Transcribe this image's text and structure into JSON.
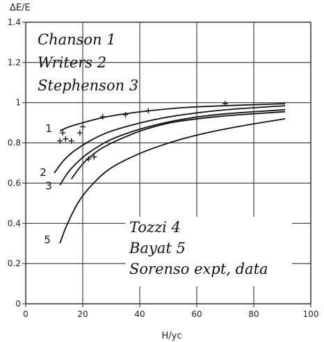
{
  "chart_data": {
    "type": "line",
    "title": "",
    "xlabel": "H/yc",
    "ylabel": "ΔE/E",
    "xlim": [
      0,
      100
    ],
    "ylim": [
      0,
      1.4
    ],
    "xticks": [
      "0",
      "20",
      "40",
      "60",
      "80",
      "100"
    ],
    "yticks": [
      "0",
      "0.2",
      "0.4",
      "0.6",
      "0.8",
      "1",
      "1.2",
      "1.4"
    ],
    "grid": true,
    "series": [
      {
        "name": "Chanson",
        "label": "1",
        "x": [
          12,
          15,
          20,
          25,
          30,
          40,
          50,
          60,
          70,
          80,
          91
        ],
        "y": [
          0.86,
          0.88,
          0.9,
          0.92,
          0.935,
          0.955,
          0.97,
          0.98,
          0.985,
          0.99,
          0.995
        ]
      },
      {
        "name": "Writers",
        "label": "2",
        "x": [
          10,
          13,
          16,
          20,
          25,
          30,
          40,
          50,
          60,
          70,
          80,
          91
        ],
        "y": [
          0.65,
          0.71,
          0.75,
          0.79,
          0.83,
          0.86,
          0.9,
          0.93,
          0.95,
          0.965,
          0.975,
          0.985
        ]
      },
      {
        "name": "Stephenson",
        "label": "3",
        "x": [
          12,
          15,
          20,
          25,
          30,
          40,
          50,
          60,
          70,
          80,
          91
        ],
        "y": [
          0.59,
          0.66,
          0.73,
          0.78,
          0.82,
          0.87,
          0.905,
          0.93,
          0.945,
          0.955,
          0.965
        ]
      },
      {
        "name": "Tozzi",
        "label": "4",
        "x": [
          16,
          20,
          25,
          30,
          35,
          40,
          50,
          60,
          70,
          80,
          91
        ],
        "y": [
          0.62,
          0.7,
          0.76,
          0.8,
          0.83,
          0.86,
          0.9,
          0.92,
          0.935,
          0.945,
          0.955
        ]
      },
      {
        "name": "Bayat",
        "label": "5",
        "x": [
          12,
          14,
          17,
          20,
          25,
          30,
          40,
          50,
          60,
          70,
          80,
          91
        ],
        "y": [
          0.3,
          0.38,
          0.47,
          0.54,
          0.62,
          0.68,
          0.75,
          0.8,
          0.84,
          0.87,
          0.895,
          0.92
        ]
      }
    ],
    "scatter": {
      "name": "Sorenso expt, data",
      "x": [
        12,
        13,
        14,
        16,
        19,
        20,
        22,
        24,
        27,
        35,
        43,
        70
      ],
      "y": [
        0.81,
        0.85,
        0.82,
        0.81,
        0.85,
        0.88,
        0.72,
        0.73,
        0.93,
        0.94,
        0.96,
        0.995
      ]
    },
    "legend": {
      "placement": "top-left",
      "lines": [
        "Chanson 1",
        "Writers 2",
        "Stephenson 3"
      ]
    },
    "legend2": {
      "placement": "bottom-right",
      "lines": [
        "Tozzi 4",
        "Bayat 5",
        "Sorenso expt, data"
      ]
    }
  }
}
